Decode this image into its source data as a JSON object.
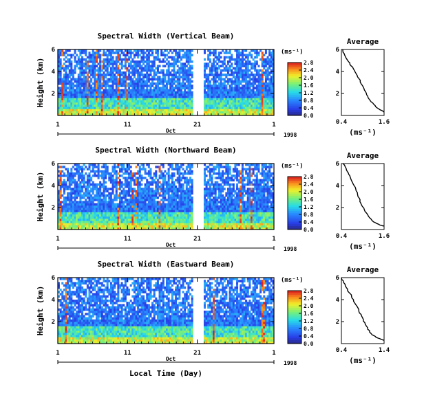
{
  "chart_data": [
    {
      "type": "heatmap",
      "title": "Spectral Width (Vertical Beam)",
      "ylabel": "Height (km)",
      "xlabel": "",
      "ylim": [
        0,
        6
      ],
      "yticks": [
        "6",
        "4",
        "2"
      ],
      "xticks": [
        "1",
        "11",
        "21",
        "1"
      ],
      "month_label": "Oct",
      "year_label": "1998",
      "data_gap_days": [
        20.5,
        21.7
      ],
      "colorbar": {
        "unit": "(ms⁻¹)",
        "ticks": [
          "2.8",
          "2.4",
          "2.0",
          "1.6",
          "1.2",
          "0.8",
          "0.4",
          "0.0"
        ],
        "range": [
          0,
          2.8
        ]
      },
      "profile": {
        "title": "Average",
        "xlabel": "(ms⁻¹)",
        "xticks": [
          "0.4",
          "1.6"
        ],
        "yticks": [
          "6",
          "4",
          "2"
        ],
        "xlim": [
          0.4,
          1.6
        ],
        "ylim": [
          0,
          6
        ],
        "points": [
          [
            0.42,
            6.0
          ],
          [
            0.5,
            5.5
          ],
          [
            0.6,
            4.9
          ],
          [
            0.7,
            4.4
          ],
          [
            0.82,
            3.8
          ],
          [
            0.92,
            3.2
          ],
          [
            1.0,
            2.6
          ],
          [
            1.1,
            2.0
          ],
          [
            1.18,
            1.5
          ],
          [
            1.3,
            1.0
          ],
          [
            1.45,
            0.6
          ],
          [
            1.6,
            0.3
          ]
        ]
      }
    },
    {
      "type": "heatmap",
      "title": "Spectral Width (Northward Beam)",
      "ylabel": "Height (km)",
      "xlabel": "",
      "ylim": [
        0,
        6
      ],
      "yticks": [
        "6",
        "4",
        "2"
      ],
      "xticks": [
        "1",
        "11",
        "21",
        "1"
      ],
      "month_label": "Oct",
      "year_label": "1998",
      "data_gap_days": [
        20.5,
        21.7
      ],
      "colorbar": {
        "unit": "(ms⁻¹)",
        "ticks": [
          "2.8",
          "2.4",
          "2.0",
          "1.6",
          "1.2",
          "0.8",
          "0.4",
          "0.0"
        ],
        "range": [
          0,
          2.8
        ]
      },
      "profile": {
        "title": "Average",
        "xlabel": "(ms⁻¹)",
        "xticks": [
          "0.4",
          "1.6"
        ],
        "yticks": [
          "6",
          "4",
          "2"
        ],
        "xlim": [
          0.4,
          1.6
        ],
        "ylim": [
          0,
          6
        ],
        "points": [
          [
            0.45,
            6.0
          ],
          [
            0.55,
            5.4
          ],
          [
            0.62,
            4.9
          ],
          [
            0.72,
            4.3
          ],
          [
            0.8,
            3.7
          ],
          [
            0.88,
            3.0
          ],
          [
            0.95,
            2.4
          ],
          [
            1.05,
            1.8
          ],
          [
            1.15,
            1.2
          ],
          [
            1.3,
            0.7
          ],
          [
            1.5,
            0.4
          ],
          [
            1.6,
            0.3
          ]
        ]
      }
    },
    {
      "type": "heatmap",
      "title": "Spectral Width (Eastward Beam)",
      "ylabel": "Height (km)",
      "xlabel": "Local Time (Day)",
      "ylim": [
        0,
        6
      ],
      "yticks": [
        "6",
        "4",
        "2"
      ],
      "xticks": [
        "1",
        "11",
        "21",
        "1"
      ],
      "month_label": "Oct",
      "year_label": "1998",
      "data_gap_days": [
        20.5,
        21.7
      ],
      "colorbar": {
        "unit": "(ms⁻¹)",
        "ticks": [
          "2.8",
          "2.4",
          "2.0",
          "1.6",
          "1.2",
          "0.8",
          "0.4",
          "0.0"
        ],
        "range": [
          0,
          2.8
        ]
      },
      "profile": {
        "title": "Average",
        "xlabel": "(ms⁻¹)",
        "xticks": [
          "0.4",
          "1.4"
        ],
        "yticks": [
          "6",
          "4",
          "2"
        ],
        "xlim": [
          0.4,
          1.4
        ],
        "ylim": [
          0,
          6
        ],
        "points": [
          [
            0.4,
            6.0
          ],
          [
            0.48,
            5.4
          ],
          [
            0.56,
            4.8
          ],
          [
            0.64,
            4.3
          ],
          [
            0.72,
            3.7
          ],
          [
            0.8,
            3.1
          ],
          [
            0.87,
            2.5
          ],
          [
            0.95,
            1.9
          ],
          [
            1.03,
            1.3
          ],
          [
            1.12,
            0.8
          ],
          [
            1.25,
            0.5
          ],
          [
            1.4,
            0.3
          ]
        ]
      }
    }
  ]
}
